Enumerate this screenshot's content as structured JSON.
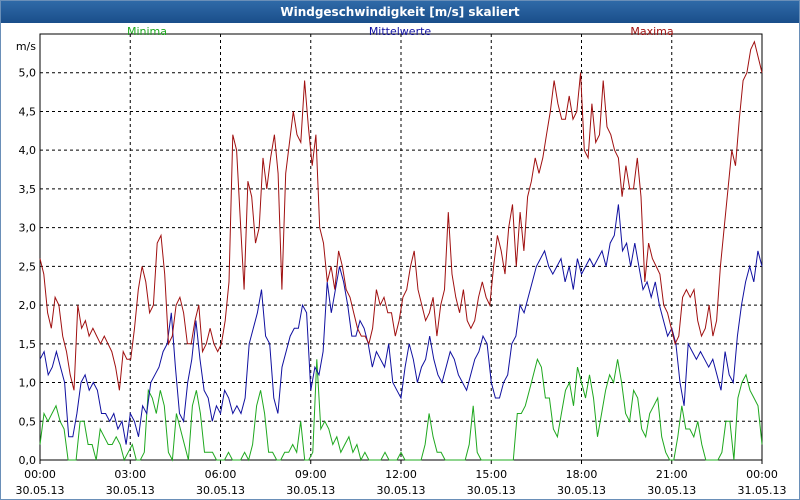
{
  "window": {
    "title": "Windgeschwindigkeit [m/s] skaliert"
  },
  "chart_data": {
    "type": "line",
    "title": "Windgeschwindigkeit [m/s] skaliert",
    "ylabel": "m/s",
    "ylim": [
      0,
      5.5
    ],
    "yticks": [
      "0,0",
      "0,5",
      "1,0",
      "1,5",
      "2,0",
      "2,5",
      "3,0",
      "3,5",
      "4,0",
      "4,5",
      "5,0"
    ],
    "xlim_hours": [
      0,
      24
    ],
    "xticks": [
      {
        "time": "00:00",
        "date": "30.05.13"
      },
      {
        "time": "03:00",
        "date": "30.05.13"
      },
      {
        "time": "06:00",
        "date": "30.05.13"
      },
      {
        "time": "09:00",
        "date": "30.05.13"
      },
      {
        "time": "12:00",
        "date": "30.05.13"
      },
      {
        "time": "15:00",
        "date": "30.05.13"
      },
      {
        "time": "18:00",
        "date": "30.05.13"
      },
      {
        "time": "21:00",
        "date": "30.05.13"
      },
      {
        "time": "00:00",
        "date": "31.05.13"
      }
    ],
    "grid": true,
    "series": [
      {
        "name": "Minima",
        "color": "#1fa81f",
        "values": [
          0.2,
          0.6,
          0.5,
          0.6,
          0.7,
          0.5,
          0.4,
          0.0,
          0.0,
          0.0,
          0.5,
          0.5,
          0.2,
          0.2,
          0.0,
          0.4,
          0.3,
          0.2,
          0.2,
          0.3,
          0.2,
          0.0,
          0.1,
          0.2,
          0.0,
          0.0,
          0.1,
          0.9,
          0.8,
          0.6,
          0.9,
          0.7,
          0.1,
          0.0,
          0.6,
          0.4,
          0.2,
          0.0,
          0.7,
          0.9,
          0.6,
          0.1,
          0.1,
          0.1,
          0.0,
          0.0,
          0.0,
          0.1,
          0.0,
          0.0,
          0.0,
          0.1,
          0.0,
          0.2,
          0.7,
          0.9,
          0.6,
          0.1,
          0.1,
          0.0,
          0.0,
          0.1,
          0.1,
          0.2,
          0.1,
          0.5,
          0.0,
          0.0,
          0.1,
          1.3,
          0.4,
          0.5,
          0.4,
          0.2,
          0.3,
          0.1,
          0.2,
          0.3,
          0.1,
          0.2,
          0.0,
          0.1,
          0.0,
          0.0,
          0.0,
          0.0,
          0.1,
          0.0,
          0.0,
          0.0,
          0.1,
          0.0,
          0.0,
          0.0,
          0.0,
          0.0,
          0.2,
          0.6,
          0.3,
          0.1,
          0.1,
          0.0,
          0.0,
          0.0,
          0.0,
          0.0,
          0.0,
          0.2,
          0.7,
          0.1,
          0.0,
          0.0,
          0.0,
          0.0,
          0.0,
          0.0,
          0.0,
          0.0,
          0.0,
          0.6,
          0.6,
          0.7,
          0.9,
          1.1,
          1.3,
          1.2,
          0.8,
          0.8,
          0.4,
          0.3,
          0.6,
          0.9,
          1.0,
          0.7,
          1.2,
          1.0,
          0.8,
          1.1,
          0.8,
          0.3,
          0.6,
          0.9,
          1.1,
          1.0,
          1.3,
          1.0,
          0.6,
          0.5,
          0.9,
          0.8,
          0.4,
          0.3,
          0.6,
          0.7,
          0.8,
          0.3,
          0.1,
          0.0,
          0.0,
          0.3,
          0.7,
          0.4,
          0.4,
          0.3,
          0.5,
          0.2,
          0.0,
          0.0,
          0.0,
          0.0,
          0.1,
          0.5,
          0.5,
          0.0,
          0.8,
          1.0,
          1.1,
          0.9,
          0.8,
          0.7,
          0.2
        ]
      },
      {
        "name": "Mittelwerte",
        "color": "#1010a0",
        "values": [
          1.3,
          1.4,
          1.1,
          1.2,
          1.4,
          1.2,
          1.0,
          0.3,
          0.3,
          0.6,
          1.0,
          1.1,
          0.9,
          1.0,
          0.9,
          0.6,
          0.6,
          0.5,
          0.6,
          0.4,
          0.5,
          0.2,
          0.6,
          0.5,
          0.3,
          0.7,
          0.6,
          1.0,
          1.1,
          1.2,
          1.4,
          1.5,
          1.9,
          1.2,
          0.6,
          0.5,
          1.0,
          1.3,
          1.8,
          1.3,
          0.9,
          0.8,
          0.5,
          0.7,
          0.6,
          0.9,
          0.8,
          0.6,
          0.7,
          0.6,
          0.8,
          1.5,
          1.7,
          1.9,
          2.2,
          1.6,
          1.5,
          0.8,
          0.6,
          1.2,
          1.4,
          1.6,
          1.7,
          1.7,
          2.0,
          1.9,
          0.9,
          1.2,
          1.1,
          1.4,
          2.3,
          1.9,
          2.2,
          2.5,
          2.3,
          2.0,
          1.6,
          1.6,
          1.8,
          1.7,
          1.5,
          1.2,
          1.4,
          1.3,
          1.2,
          1.5,
          1.0,
          0.9,
          0.8,
          1.2,
          1.5,
          1.3,
          1.0,
          1.2,
          1.3,
          1.6,
          1.3,
          1.1,
          1.0,
          1.2,
          1.4,
          1.3,
          1.1,
          1.0,
          0.9,
          1.1,
          1.3,
          1.4,
          1.6,
          1.5,
          1.0,
          0.8,
          0.8,
          1.0,
          1.1,
          1.5,
          1.6,
          2.0,
          1.9,
          2.1,
          2.3,
          2.5,
          2.6,
          2.7,
          2.5,
          2.4,
          2.5,
          2.6,
          2.3,
          2.5,
          2.2,
          2.6,
          2.4,
          2.5,
          2.6,
          2.5,
          2.6,
          2.7,
          2.5,
          2.8,
          2.9,
          3.3,
          2.7,
          2.8,
          2.5,
          2.8,
          2.5,
          2.2,
          2.3,
          2.1,
          2.3,
          2.0,
          1.8,
          1.6,
          1.7,
          1.5,
          1.0,
          0.7,
          1.5,
          1.4,
          1.3,
          1.4,
          1.3,
          1.2,
          1.3,
          1.1,
          0.9,
          1.4,
          1.1,
          1.0,
          1.6,
          2.0,
          2.3,
          2.5,
          2.3,
          2.7,
          2.5
        ]
      },
      {
        "name": "Maxima",
        "color": "#a01010",
        "values": [
          2.6,
          2.4,
          1.9,
          1.7,
          2.1,
          2.0,
          1.6,
          1.4,
          1.1,
          0.9,
          2.0,
          1.7,
          1.8,
          1.6,
          1.7,
          1.6,
          1.5,
          1.6,
          1.5,
          1.4,
          1.2,
          0.9,
          1.4,
          1.3,
          1.3,
          1.7,
          2.2,
          2.5,
          2.3,
          1.9,
          2.0,
          2.8,
          2.9,
          2.4,
          1.5,
          1.6,
          2.0,
          2.1,
          1.9,
          1.5,
          1.5,
          1.8,
          2.0,
          1.4,
          1.5,
          1.7,
          1.5,
          1.4,
          1.5,
          1.8,
          2.3,
          4.2,
          4.0,
          3.1,
          2.2,
          3.6,
          3.4,
          2.8,
          3.0,
          3.9,
          3.5,
          3.9,
          4.2,
          3.7,
          2.2,
          3.7,
          4.1,
          4.5,
          4.2,
          4.1,
          4.9,
          4.3,
          3.8,
          4.2,
          3.0,
          2.8,
          2.3,
          2.5,
          2.2,
          2.7,
          2.5,
          2.2,
          2.1,
          1.9,
          1.7,
          1.6,
          1.6,
          1.5,
          1.7,
          2.2,
          2.0,
          2.1,
          1.9,
          1.9,
          1.6,
          1.8,
          2.1,
          2.2,
          2.5,
          2.7,
          2.2,
          2.0,
          1.8,
          1.9,
          2.1,
          1.6,
          2.0,
          2.2,
          3.2,
          2.4,
          2.1,
          1.9,
          2.2,
          1.8,
          1.7,
          1.8,
          2.1,
          2.3,
          2.1,
          2.0,
          2.5,
          2.9,
          2.7,
          2.4,
          3.0,
          3.3,
          2.5,
          3.2,
          2.7,
          3.4,
          3.6,
          3.9,
          3.7,
          3.9,
          4.2,
          4.5,
          4.9,
          4.6,
          4.4,
          4.4,
          4.7,
          4.4,
          4.5,
          5.0,
          4.0,
          3.9,
          4.6,
          4.1,
          4.2,
          4.9,
          4.3,
          4.2,
          4.0,
          3.9,
          3.4,
          3.8,
          3.5,
          3.5,
          3.9,
          3.4,
          2.3,
          2.8,
          2.6,
          2.5,
          2.4,
          2.0,
          1.9,
          1.7,
          1.5,
          1.6,
          2.1,
          2.2,
          2.1,
          2.2,
          1.8,
          1.6,
          1.7,
          2.0,
          1.6,
          1.8,
          2.5,
          3.0,
          3.5,
          4.0,
          3.8,
          4.4,
          4.9,
          5.0,
          5.3,
          5.4,
          5.2,
          5.0
        ]
      }
    ]
  }
}
